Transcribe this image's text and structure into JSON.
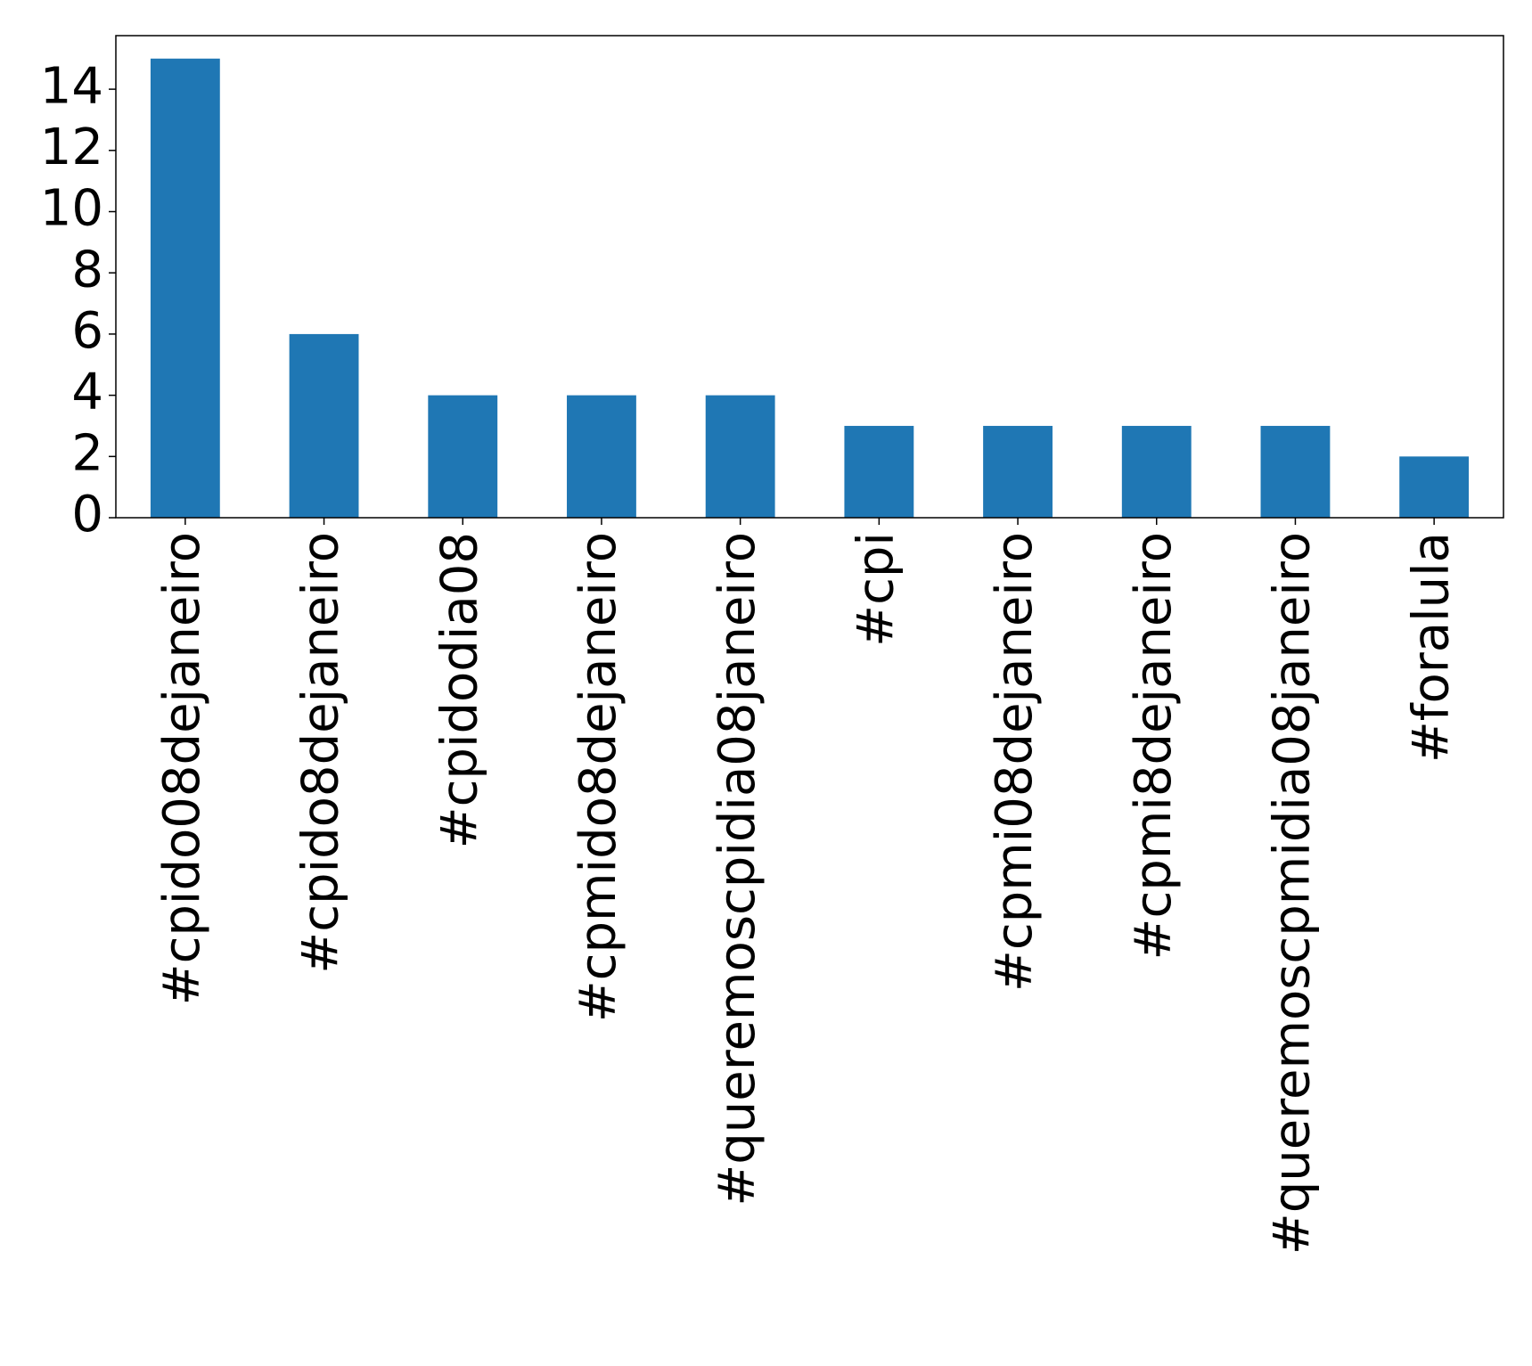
{
  "chart_data": {
    "type": "bar",
    "categories": [
      "#cpido08dejaneiro",
      "#cpido8dejaneiro",
      "#cpidodia08",
      "#cpmido8dejaneiro",
      "#queremoscpidia08janeiro",
      "#cpi",
      "#cpmi08dejaneiro",
      "#cpmi8dejaneiro",
      "#queremoscpmidia08janeiro",
      "#foralula"
    ],
    "values": [
      15,
      6,
      4,
      4,
      4,
      3,
      3,
      3,
      3,
      2
    ],
    "color": "#1f77b4",
    "ylim": [
      0,
      15.75
    ],
    "yticks": [
      0,
      2,
      4,
      6,
      8,
      10,
      12,
      14
    ],
    "grid": false
  }
}
